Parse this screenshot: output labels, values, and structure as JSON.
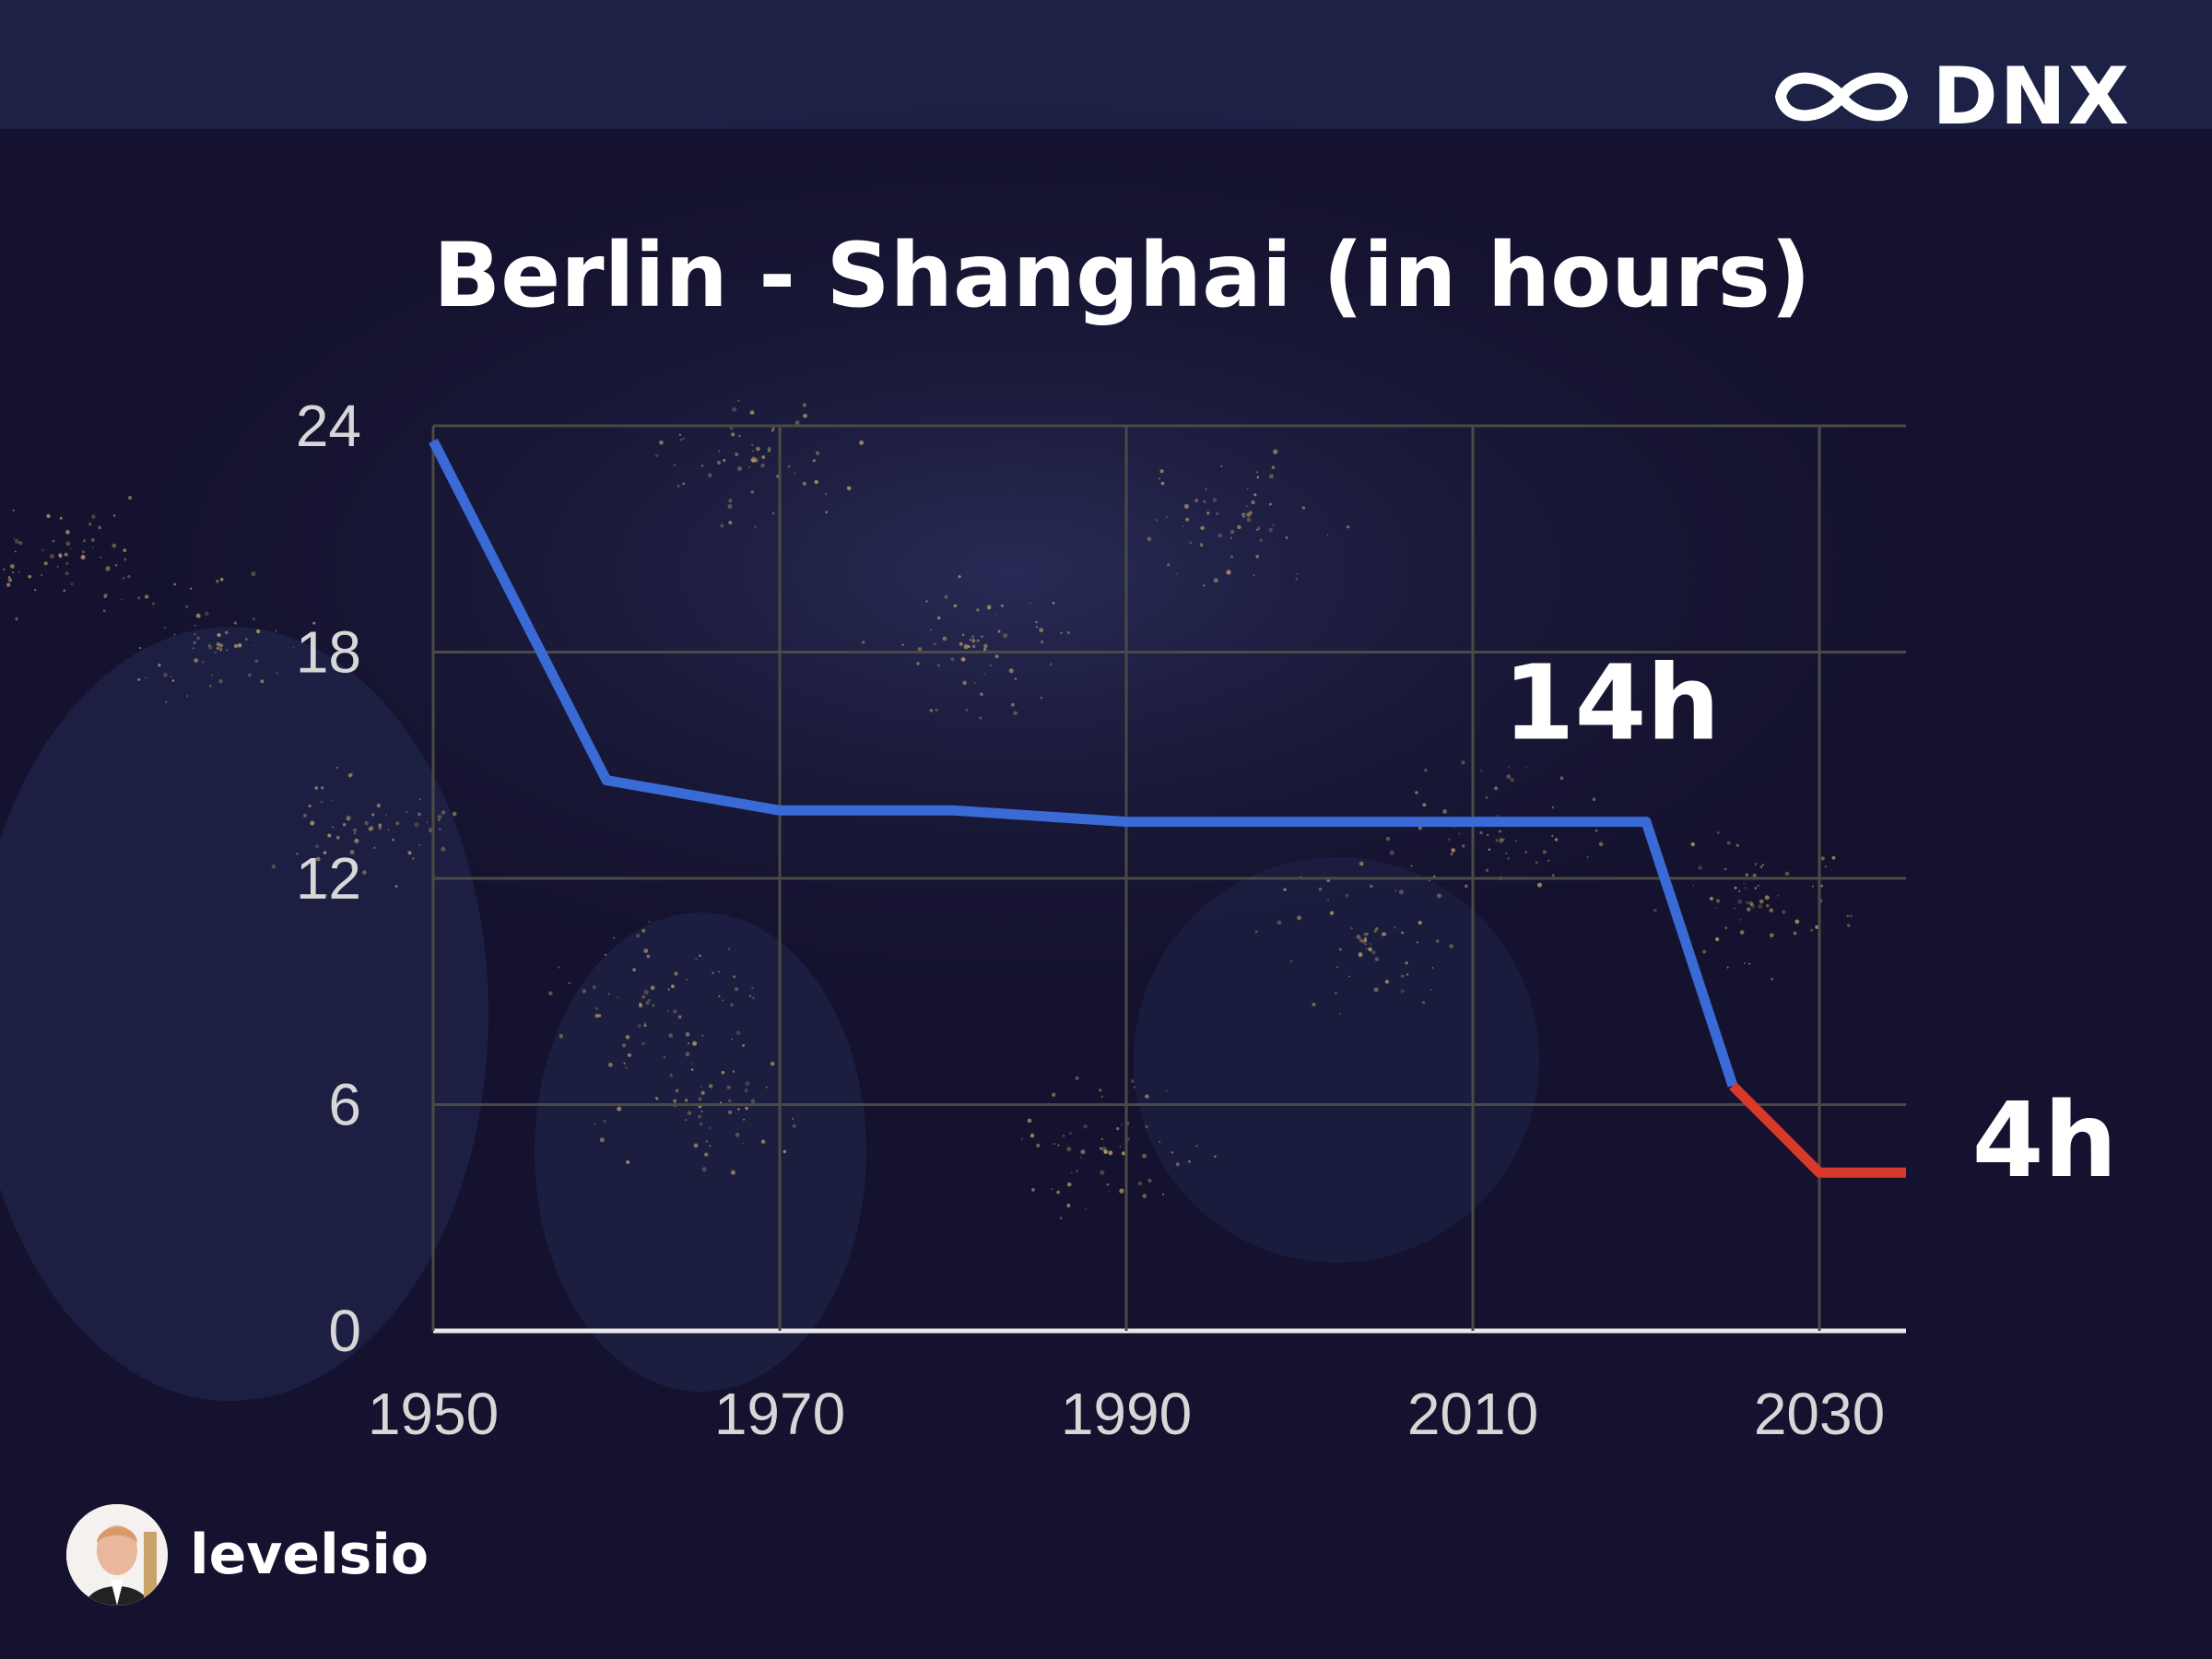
{
  "brand": {
    "name": "DNX",
    "logo_icon": "infinity-icon"
  },
  "author": {
    "handle": "levelsio",
    "avatar_icon": "avatar"
  },
  "colors": {
    "background": "#14122e",
    "line_main": "#3a6ad6",
    "line_future": "#d8392b",
    "grid": "#4b4a44",
    "axis": "#e8e8e8",
    "tick_text": "#d7d7d7",
    "text": "#ffffff"
  },
  "chart_data": {
    "type": "line",
    "title": "Berlin - Shanghai (in hours)",
    "xlabel": "",
    "ylabel": "",
    "xlim": [
      1950,
      2035
    ],
    "ylim": [
      0,
      24
    ],
    "x_ticks": [
      "1950",
      "1970",
      "1990",
      "2010",
      "2030"
    ],
    "y_ticks": [
      "0",
      "6",
      "12",
      "18",
      "24"
    ],
    "grid": true,
    "series": [
      {
        "color": "#3a6ad6",
        "x": [
          1950,
          1960,
          1970,
          1980,
          1990,
          2000,
          2010,
          2020,
          2025
        ],
        "y": [
          23.6,
          14.6,
          13.8,
          13.8,
          13.5,
          13.5,
          13.5,
          13.5,
          6.5
        ]
      },
      {
        "color": "#d8392b",
        "x": [
          2025,
          2030,
          2035
        ],
        "y": [
          6.5,
          4.2,
          4.2
        ]
      }
    ],
    "annotations": [
      {
        "text": "14h",
        "x": 2018,
        "y": 15.7
      },
      {
        "text": "4h",
        "x": 2043,
        "y": 4.1
      }
    ]
  }
}
